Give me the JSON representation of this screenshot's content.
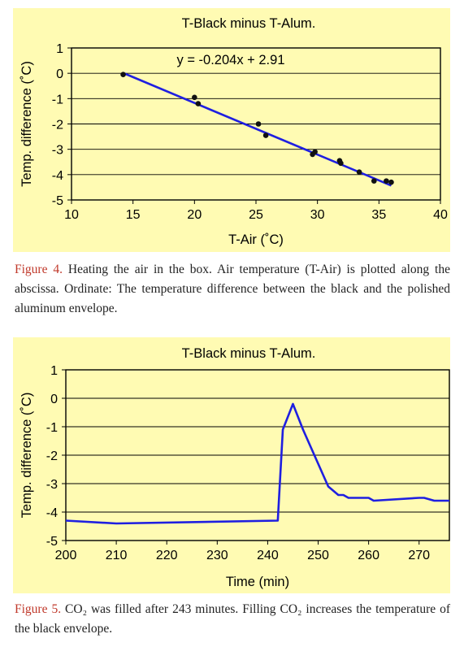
{
  "figures": [
    {
      "caption_label": "Figure 4.",
      "caption_text": " Heating the air in the box. Air temperature (T-Air) is plotted along the abscissa. Ordinate: The temperature difference between the black and the polished aluminum envelope."
    },
    {
      "caption_label": "Figure 5.",
      "caption_text": " CO₂ was filled after 243 minutes. Filling CO₂ increases the temperature of the black envelope."
    }
  ],
  "colors": {
    "panel_bg": "#fffbb3",
    "series": "#1f1fe0",
    "point": "#111111",
    "caption_label": "#c0392b"
  },
  "chart_data": [
    {
      "type": "scatter",
      "title": "T-Black minus T-Alum.",
      "xlabel": "T-Air (˚C)",
      "ylabel": "Temp. difference (˚C)",
      "xlim": [
        10,
        40
      ],
      "ylim": [
        -5,
        1
      ],
      "xticks": [
        "10",
        "15",
        "20",
        "25",
        "30",
        "35",
        "40"
      ],
      "yticks": [
        "1",
        "0",
        "-1",
        "-2",
        "-3",
        "-4",
        "-5"
      ],
      "grid": "horizontal",
      "annotation": "y = -0.204x + 2.91",
      "trendline": {
        "slope": -0.204,
        "intercept": 2.91,
        "x_range": [
          14.2,
          36
        ]
      },
      "points": [
        {
          "x": 14.2,
          "y": -0.05
        },
        {
          "x": 20.0,
          "y": -0.95
        },
        {
          "x": 20.3,
          "y": -1.2
        },
        {
          "x": 25.2,
          "y": -2.0
        },
        {
          "x": 25.8,
          "y": -2.45
        },
        {
          "x": 29.6,
          "y": -3.2
        },
        {
          "x": 29.8,
          "y": -3.1
        },
        {
          "x": 31.8,
          "y": -3.45
        },
        {
          "x": 31.9,
          "y": -3.55
        },
        {
          "x": 33.4,
          "y": -3.9
        },
        {
          "x": 34.6,
          "y": -4.25
        },
        {
          "x": 35.6,
          "y": -4.25
        },
        {
          "x": 36.0,
          "y": -4.3
        }
      ]
    },
    {
      "type": "line",
      "title": "T-Black minus T-Alum.",
      "xlabel": "Time (min)",
      "ylabel": "Temp. difference (˚C)",
      "xlim": [
        200,
        276
      ],
      "ylim": [
        -5,
        1
      ],
      "xticks": [
        "200",
        "210",
        "220",
        "230",
        "240",
        "250",
        "260",
        "270"
      ],
      "yticks": [
        "1",
        "0",
        "-1",
        "-2",
        "-3",
        "-4",
        "-5"
      ],
      "grid": "horizontal",
      "series": [
        {
          "x": [
            200,
            210,
            242,
            243,
            245,
            247,
            250,
            252,
            254,
            255,
            256,
            260,
            261,
            270,
            271,
            273,
            276
          ],
          "y": [
            -4.3,
            -4.4,
            -4.3,
            -1.1,
            -0.2,
            -1.1,
            -2.3,
            -3.1,
            -3.4,
            -3.4,
            -3.5,
            -3.5,
            -3.6,
            -3.5,
            -3.5,
            -3.6,
            -3.6
          ]
        }
      ]
    }
  ]
}
